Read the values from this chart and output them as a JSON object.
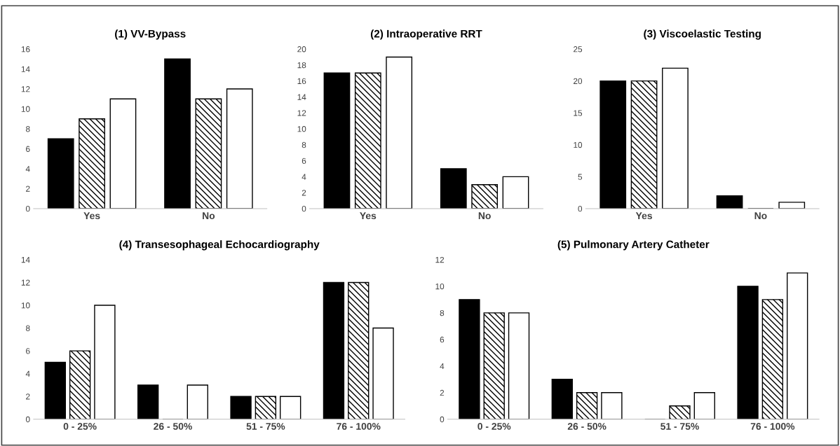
{
  "chart_data": [
    {
      "type": "bar",
      "title": "(1) VV-Bypass",
      "categories": [
        "Yes",
        "No"
      ],
      "ylim": [
        0,
        16
      ],
      "yticks": [
        0,
        2,
        4,
        6,
        8,
        10,
        12,
        14,
        16
      ],
      "grid": false,
      "legend": false,
      "series": [
        {
          "color": "#000000",
          "values": [
            7,
            15
          ]
        },
        {
          "color": "#000000",
          "values": [
            9,
            11
          ]
        },
        {
          "color": "#ffffff",
          "values": [
            11,
            12
          ]
        }
      ]
    },
    {
      "type": "bar",
      "title": "(2) Intraoperative RRT",
      "categories": [
        "Yes",
        "No"
      ],
      "ylim": [
        0,
        20
      ],
      "yticks": [
        0,
        2,
        4,
        6,
        8,
        10,
        12,
        14,
        16,
        18,
        20
      ],
      "grid": false,
      "legend": false,
      "series": [
        {
          "color": "#000000",
          "values": [
            17,
            5
          ]
        },
        {
          "color": "#000000",
          "values": [
            17,
            3
          ]
        },
        {
          "color": "#ffffff",
          "values": [
            19,
            4
          ]
        }
      ]
    },
    {
      "type": "bar",
      "title": "(3) Viscoelastic Testing",
      "categories": [
        "Yes",
        "No"
      ],
      "ylim": [
        0,
        25
      ],
      "yticks": [
        0,
        5,
        10,
        15,
        20,
        25
      ],
      "grid": false,
      "legend": false,
      "series": [
        {
          "color": "#000000",
          "values": [
            20,
            2
          ]
        },
        {
          "color": "#000000",
          "values": [
            20,
            0
          ]
        },
        {
          "color": "#ffffff",
          "values": [
            22,
            1
          ]
        }
      ]
    },
    {
      "type": "bar",
      "title": "(4) Transesophageal Echocardiography",
      "categories": [
        "0 - 25%",
        "26 - 50%",
        "51 - 75%",
        "76 - 100%"
      ],
      "ylim": [
        0,
        14
      ],
      "yticks": [
        0,
        2,
        4,
        6,
        8,
        10,
        12,
        14
      ],
      "grid": false,
      "legend": false,
      "series": [
        {
          "color": "#000000",
          "values": [
            5,
            3,
            2,
            12
          ]
        },
        {
          "color": "#000000",
          "values": [
            6,
            0,
            2,
            12
          ]
        },
        {
          "color": "#ffffff",
          "values": [
            10,
            3,
            2,
            8
          ]
        }
      ]
    },
    {
      "type": "bar",
      "title": "(5) Pulmonary Artery Catheter",
      "categories": [
        "0 - 25%",
        "26 - 50%",
        "51 - 75%",
        "76 - 100%"
      ],
      "ylim": [
        0,
        12
      ],
      "yticks": [
        0,
        2,
        4,
        6,
        8,
        10,
        12
      ],
      "grid": false,
      "legend": false,
      "series": [
        {
          "color": "#000000",
          "values": [
            9,
            3,
            0,
            10
          ]
        },
        {
          "color": "#000000",
          "values": [
            8,
            2,
            1,
            9
          ]
        },
        {
          "color": "#ffffff",
          "values": [
            8,
            2,
            2,
            11
          ]
        }
      ]
    }
  ]
}
